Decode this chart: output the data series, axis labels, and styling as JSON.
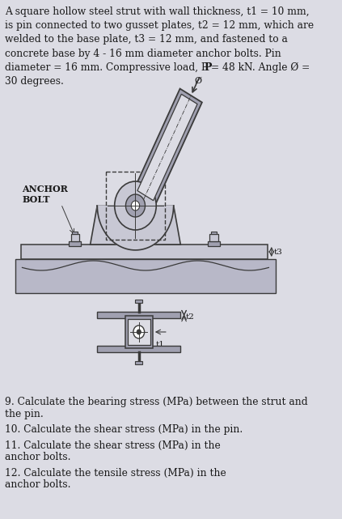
{
  "bg_color": "#dcdce4",
  "title_text": "A square hollow steel strut with wall thickness, t1 = 10 mm,\nis pin connected to two gusset plates, t2 = 12 mm, which are\nwelded to the base plate, t3 = 12 mm, and fastened to a\nconcrete base by 4 - 16 mm diameter anchor bolts. Pin\ndiameter = 16 mm. Compressive load, P = 48 kN. Angle Ø =\n30 degrees.",
  "questions": [
    "9. Calculate the bearing stress (MPa) between the strut and\nthe pin.",
    "10. Calculate the shear stress (MPa) in the pin.",
    "11. Calculate the shear stress (MPa) in the\nanchor bolts.",
    "12. Calculate the tensile stress (MPa) in the\nanchor bolts."
  ],
  "dc": "#3a3a3a",
  "df": "#c8c8d4",
  "dl": "#a0a0b0",
  "tc": "#1a1a1a",
  "conc_color": "#b8b8c8"
}
